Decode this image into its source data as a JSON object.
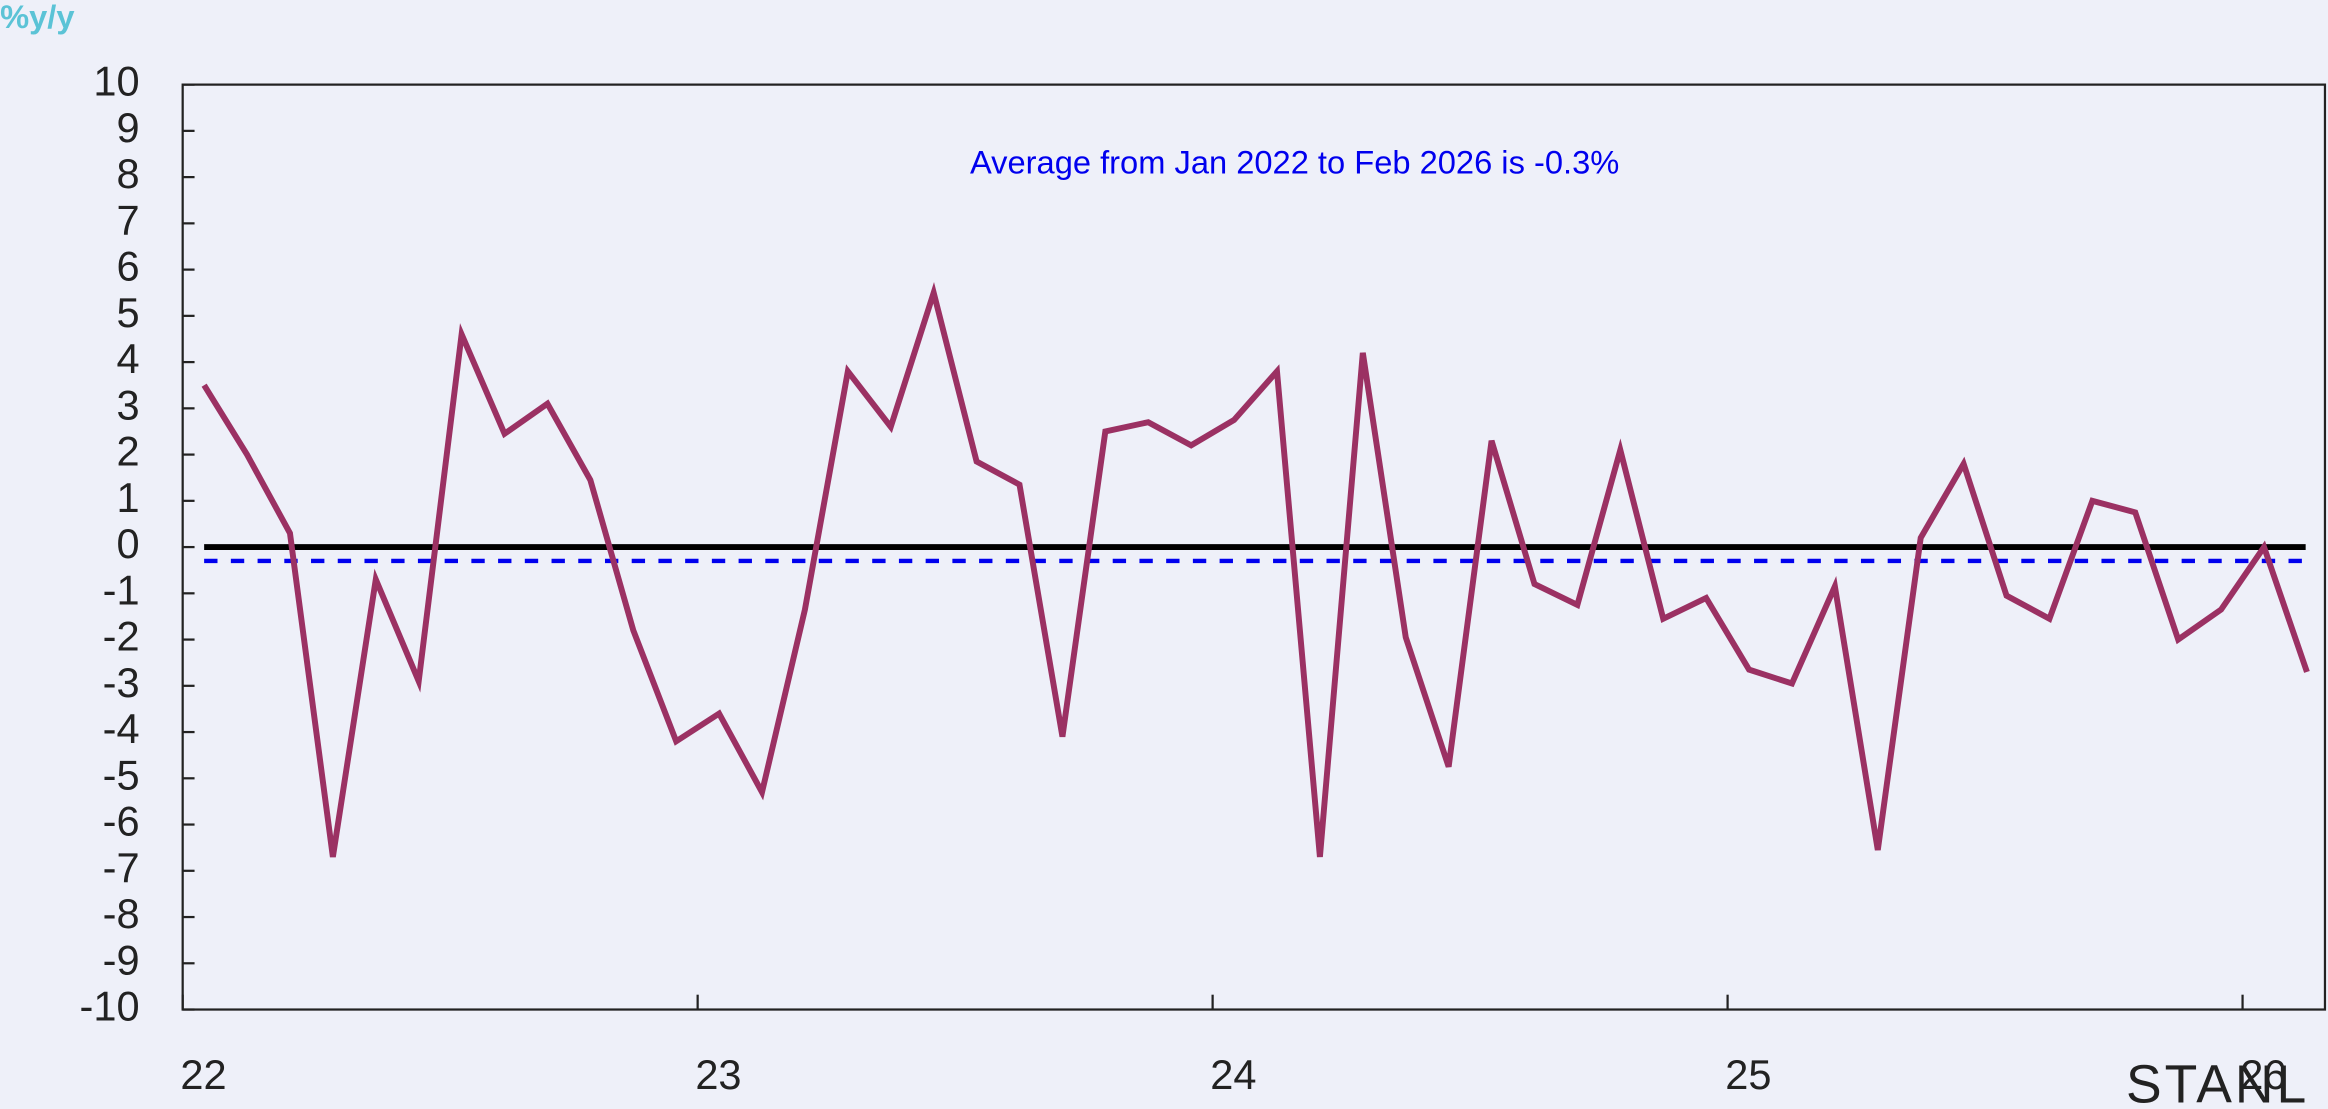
{
  "chart_data": {
    "type": "line",
    "y_unit_label": "%y/y",
    "annotation": "Average from Jan 2022 to Feb 2026 is -0.3%",
    "watermark": "STANL",
    "x": [
      "2022-01",
      "2022-02",
      "2022-03",
      "2022-04",
      "2022-05",
      "2022-06",
      "2022-07",
      "2022-08",
      "2022-09",
      "2022-10",
      "2022-11",
      "2022-12",
      "2023-01",
      "2023-02",
      "2023-03",
      "2023-04",
      "2023-05",
      "2023-06",
      "2023-07",
      "2023-08",
      "2023-09",
      "2023-10",
      "2023-11",
      "2023-12",
      "2024-01",
      "2024-02",
      "2024-03",
      "2024-04",
      "2024-05",
      "2024-06",
      "2024-07",
      "2024-08",
      "2024-09",
      "2024-10",
      "2024-11",
      "2024-12",
      "2025-01",
      "2025-02",
      "2025-03",
      "2025-04",
      "2025-05",
      "2025-06",
      "2025-07",
      "2025-08",
      "2025-09",
      "2025-10",
      "2025-11",
      "2025-12",
      "2026-01",
      "2026-02"
    ],
    "series": [
      {
        "color": "#9b3163",
        "values": [
          3.5,
          2.0,
          0.3,
          -6.7,
          -0.7,
          -2.9,
          4.6,
          2.45,
          3.1,
          1.45,
          -1.8,
          -4.2,
          -3.6,
          -5.3,
          -1.35,
          3.8,
          2.6,
          5.5,
          1.85,
          1.35,
          -4.1,
          2.5,
          2.7,
          2.2,
          2.75,
          3.8,
          -6.7,
          4.2,
          -1.95,
          -4.75,
          2.3,
          -0.8,
          -1.25,
          2.1,
          -1.55,
          -1.1,
          -2.65,
          -2.95,
          -0.85,
          -6.55,
          0.2,
          1.8,
          -1.05,
          -1.55,
          1.0,
          0.75,
          -2.0,
          -1.35,
          0.0,
          -2.7
        ]
      }
    ],
    "hlines": [
      {
        "value": 0,
        "color": "#000000",
        "style": "solid"
      },
      {
        "value": -0.3,
        "color": "#0000ee",
        "style": "dashed"
      }
    ],
    "xlim": [
      2022,
      2026.16
    ],
    "xticks": [
      {
        "value": 2022,
        "label": "22"
      },
      {
        "value": 2023,
        "label": "23"
      },
      {
        "value": 2024,
        "label": "24"
      },
      {
        "value": 2025,
        "label": "25"
      },
      {
        "value": 2026,
        "label": "26"
      }
    ],
    "ylim": [
      -10,
      10
    ],
    "yticks": [
      10,
      9,
      8,
      7,
      6,
      5,
      4,
      3,
      2,
      1,
      0,
      -1,
      -2,
      -3,
      -4,
      -5,
      -6,
      -7,
      -8,
      -9,
      -10
    ],
    "grid": false
  }
}
